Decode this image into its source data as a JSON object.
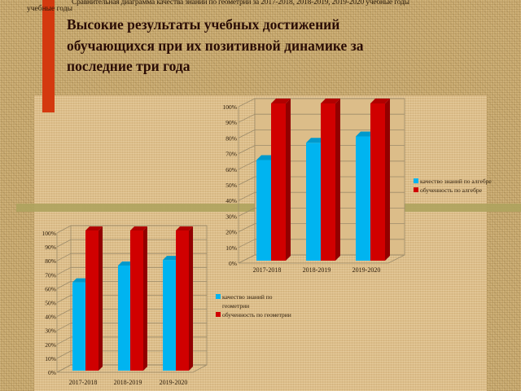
{
  "slide": {
    "caption_line1": "Сравнительная диаграмма качества знаний по геометрии за 2017-2018, 2018-2019, 2019-2020 учебные годы",
    "caption_line2": "учебные годы",
    "title_lines": [
      "Высокие результаты учебных достижений",
      "обучающихся при их позитивной динамике за",
      "последние три года"
    ]
  },
  "colors": {
    "accent_bar": "#d4390f",
    "series_quality": "#00b4f0",
    "series_learning": "#d00000",
    "title": "#2b0d06"
  },
  "chart_data": [
    {
      "id": "algebra",
      "type": "bar",
      "style": "3d-clustered-column",
      "title": "",
      "xlabel": "",
      "ylabel": "",
      "categories": [
        "2017-2018",
        "2018-2019",
        "2019-2020"
      ],
      "yticks": [
        "0%",
        "10%",
        "20%",
        "30%",
        "40%",
        "50%",
        "60%",
        "70%",
        "80%",
        "90%",
        "100%"
      ],
      "ylim": [
        0,
        100
      ],
      "grid": true,
      "legend_position": "right",
      "series": [
        {
          "name": "качество знаний по алгебре",
          "color": "#00b4f0",
          "values": [
            64,
            75,
            79
          ]
        },
        {
          "name": "обученность по алгебре",
          "color": "#d00000",
          "values": [
            100,
            100,
            100
          ]
        }
      ]
    },
    {
      "id": "geometry",
      "type": "bar",
      "style": "3d-clustered-column",
      "title": "",
      "xlabel": "",
      "ylabel": "",
      "categories": [
        "2017-2018",
        "2018-2019",
        "2019-2020"
      ],
      "yticks": [
        "0%",
        "10%",
        "20%",
        "30%",
        "40%",
        "50%",
        "60%",
        "70%",
        "80%",
        "90%",
        "100%"
      ],
      "ylim": [
        0,
        100
      ],
      "grid": true,
      "legend_position": "right",
      "series": [
        {
          "name": "качество знаний по геометрии",
          "color": "#00b4f0",
          "values": [
            63,
            75,
            79
          ]
        },
        {
          "name": "обученность по геометрии",
          "color": "#d00000",
          "values": [
            100,
            100,
            100
          ]
        }
      ]
    }
  ]
}
